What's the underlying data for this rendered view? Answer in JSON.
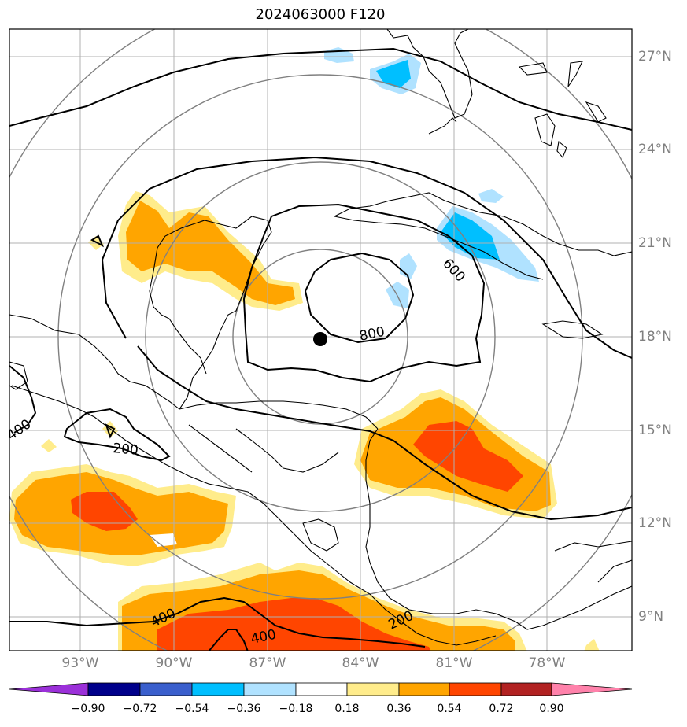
{
  "title": "2024063000 F120",
  "lon_labels": [
    "93°W",
    "90°W",
    "87°W",
    "84°W",
    "81°W",
    "78°W"
  ],
  "lat_labels": [
    "27°N",
    "24°N",
    "21°N",
    "18°N",
    "15°N",
    "12°N",
    "9°N"
  ],
  "contour_labels": [
    "800",
    "600",
    "400",
    "200",
    "200",
    "400",
    "400"
  ],
  "colorbar": {
    "ticks": [
      "−0.90",
      "−0.72",
      "−0.54",
      "−0.36",
      "−0.18",
      "0.18",
      "0.36",
      "0.54",
      "0.72",
      "0.90"
    ],
    "colors": [
      "#9b30d9",
      "#00008b",
      "#3a5fcd",
      "#00bfff",
      "#b0e2ff",
      "#ffffff",
      "#ffec8b",
      "#ffa500",
      "#ff4500",
      "#b22222",
      "#ff82ab"
    ]
  },
  "storm_center": {
    "lat": 18.0,
    "lon": -85.2
  }
}
